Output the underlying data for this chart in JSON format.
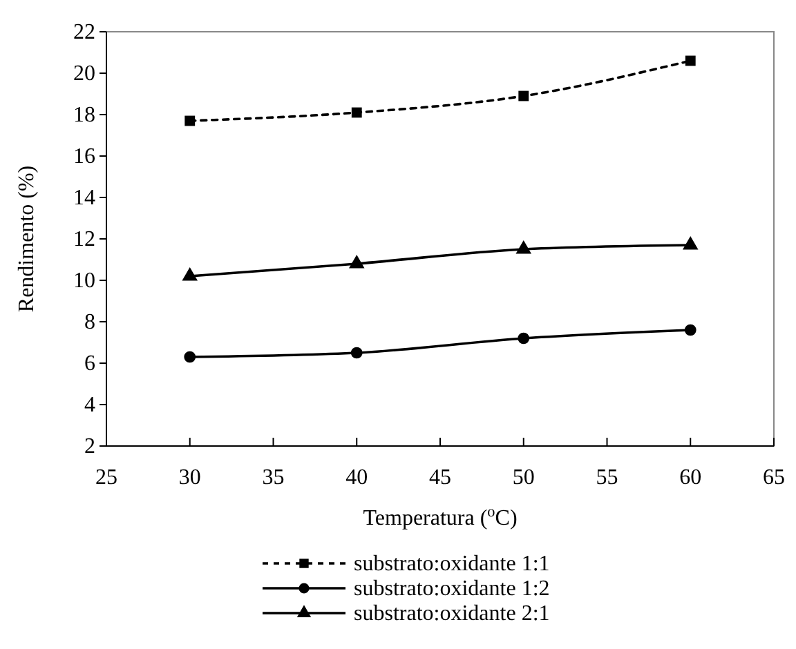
{
  "chart_data": {
    "type": "line",
    "xlabel": "Temperatura ($^{o}$C)",
    "ylabel": "Rendimento (%)",
    "x": [
      30,
      40,
      50,
      60
    ],
    "series": [
      {
        "name": "substrato:oxidante 1:1",
        "color": "#000000",
        "marker": "square",
        "line_style": "dashed",
        "values": [
          17.7,
          18.1,
          18.9,
          20.6
        ]
      },
      {
        "name": "substrato:oxidante 1:2",
        "color": "#000000",
        "marker": "circle",
        "line_style": "solid",
        "values": [
          6.3,
          6.5,
          7.2,
          7.6
        ]
      },
      {
        "name": "substrato:oxidante 2:1",
        "color": "#000000",
        "marker": "triangle",
        "line_style": "solid",
        "values": [
          10.2,
          10.8,
          11.5,
          11.7
        ]
      }
    ],
    "xlim": [
      25,
      65
    ],
    "xticks": [
      25,
      30,
      35,
      40,
      45,
      50,
      55,
      60,
      65
    ],
    "ylim": [
      2,
      22
    ],
    "yticks": [
      2,
      4,
      6,
      8,
      10,
      12,
      14,
      16,
      18,
      20,
      22
    ],
    "grid": false,
    "legend": "bottom"
  }
}
